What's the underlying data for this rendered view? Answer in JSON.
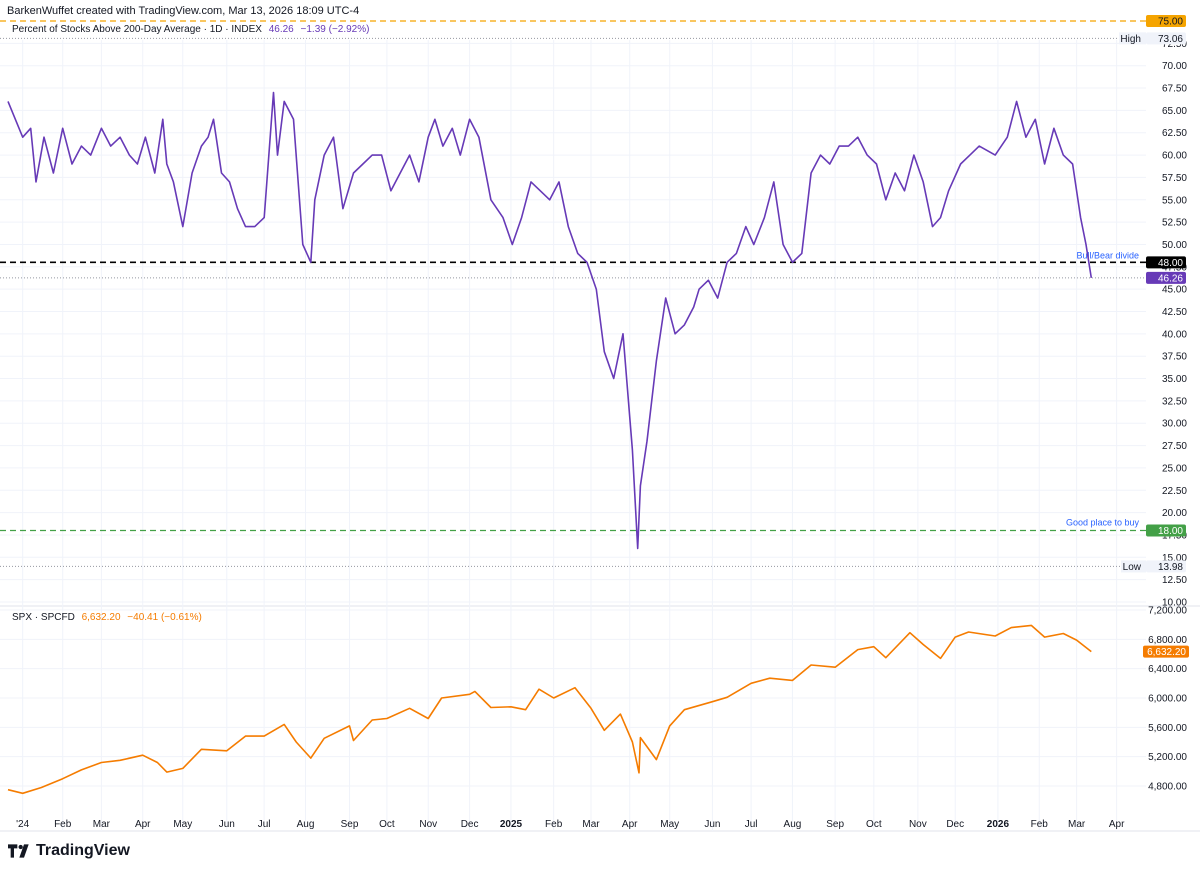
{
  "header": {
    "credit": "BarkenWuffet created with TradingView.com, Mar 13, 2026 18:09 UTC-4"
  },
  "legend_top": {
    "name": "Percent of Stocks Above 200-Day Average · 1D · INDEX",
    "value": "46.26",
    "change": "−1.39 (−2.92%)"
  },
  "legend_bottom": {
    "name": "SPX · SPCFD",
    "value": "6,632.20",
    "change": "−40.41 (−0.61%)"
  },
  "brand": {
    "name": "TradingView"
  },
  "colors": {
    "breadth": "#673ab7",
    "spx": "#f57c00",
    "level75": "#f5a400",
    "level18": "#43a047",
    "grid": "#f0f3fa",
    "label_blue": "#2962ff"
  },
  "chart_data": [
    {
      "type": "line",
      "title": "Percent of Stocks Above 200-Day Average · 1D · INDEX",
      "ylim": [
        10,
        75
      ],
      "y_ticks": [
        "10.00",
        "12.50",
        "15.00",
        "17.50",
        "20.00",
        "22.50",
        "25.00",
        "27.50",
        "30.00",
        "32.50",
        "35.00",
        "37.50",
        "40.00",
        "42.50",
        "45.00",
        "47.50",
        "50.00",
        "52.50",
        "55.00",
        "57.50",
        "60.00",
        "62.50",
        "65.00",
        "67.50",
        "70.00",
        "72.50"
      ],
      "x_ticks": [
        "'24",
        "Feb",
        "Mar",
        "Apr",
        "May",
        "Jun",
        "Jul",
        "Aug",
        "Sep",
        "Oct",
        "Nov",
        "Dec",
        "2025",
        "Feb",
        "Mar",
        "Apr",
        "May",
        "Jun",
        "Jul",
        "Aug",
        "Sep",
        "Oct",
        "Nov",
        "Dec",
        "2026",
        "Feb",
        "Mar",
        "Apr"
      ],
      "x_tick_dates": [
        "2024-01-02",
        "2024-02-01",
        "2024-03-01",
        "2024-04-01",
        "2024-05-01",
        "2024-06-03",
        "2024-07-01",
        "2024-08-01",
        "2024-09-03",
        "2024-10-01",
        "2024-11-01",
        "2024-12-02",
        "2025-01-02",
        "2025-02-03",
        "2025-03-03",
        "2025-04-01",
        "2025-05-01",
        "2025-06-02",
        "2025-07-01",
        "2025-08-01",
        "2025-09-02",
        "2025-10-01",
        "2025-11-03",
        "2025-12-01",
        "2026-01-02",
        "2026-02-02",
        "2026-03-02",
        "2026-04-01"
      ],
      "xlim": [
        "2023-12-22",
        "2026-04-23"
      ],
      "series": [
        {
          "name": "Percent of Stocks Above 200-Day Average",
          "x": [
            "2023-12-22",
            "2024-01-02",
            "2024-01-08",
            "2024-01-12",
            "2024-01-18",
            "2024-01-25",
            "2024-02-01",
            "2024-02-08",
            "2024-02-15",
            "2024-02-22",
            "2024-03-01",
            "2024-03-08",
            "2024-03-15",
            "2024-03-22",
            "2024-03-28",
            "2024-04-03",
            "2024-04-10",
            "2024-04-16",
            "2024-04-19",
            "2024-04-24",
            "2024-05-01",
            "2024-05-08",
            "2024-05-15",
            "2024-05-20",
            "2024-05-24",
            "2024-05-30",
            "2024-06-05",
            "2024-06-11",
            "2024-06-17",
            "2024-06-24",
            "2024-07-01",
            "2024-07-08",
            "2024-07-11",
            "2024-07-16",
            "2024-07-23",
            "2024-07-30",
            "2024-08-05",
            "2024-08-08",
            "2024-08-15",
            "2024-08-22",
            "2024-08-29",
            "2024-09-06",
            "2024-09-13",
            "2024-09-20",
            "2024-09-27",
            "2024-10-04",
            "2024-10-11",
            "2024-10-18",
            "2024-10-25",
            "2024-11-01",
            "2024-11-06",
            "2024-11-12",
            "2024-11-19",
            "2024-11-25",
            "2024-12-02",
            "2024-12-09",
            "2024-12-18",
            "2024-12-27",
            "2025-01-03",
            "2025-01-10",
            "2025-01-17",
            "2025-01-24",
            "2025-01-31",
            "2025-02-07",
            "2025-02-14",
            "2025-02-21",
            "2025-02-28",
            "2025-03-07",
            "2025-03-13",
            "2025-03-20",
            "2025-03-27",
            "2025-04-03",
            "2025-04-07",
            "2025-04-09",
            "2025-04-14",
            "2025-04-21",
            "2025-04-28",
            "2025-05-05",
            "2025-05-12",
            "2025-05-19",
            "2025-05-23",
            "2025-05-30",
            "2025-06-06",
            "2025-06-13",
            "2025-06-20",
            "2025-06-27",
            "2025-07-03",
            "2025-07-11",
            "2025-07-18",
            "2025-07-25",
            "2025-08-01",
            "2025-08-08",
            "2025-08-15",
            "2025-08-22",
            "2025-08-29",
            "2025-09-05",
            "2025-09-12",
            "2025-09-19",
            "2025-09-26",
            "2025-10-03",
            "2025-10-10",
            "2025-10-17",
            "2025-10-24",
            "2025-10-31",
            "2025-11-07",
            "2025-11-14",
            "2025-11-20",
            "2025-11-26",
            "2025-12-05",
            "2025-12-12",
            "2025-12-19",
            "2025-12-31",
            "2026-01-09",
            "2026-01-16",
            "2026-01-23",
            "2026-01-30",
            "2026-02-06",
            "2026-02-13",
            "2026-02-20",
            "2026-02-27",
            "2026-03-05",
            "2026-03-09",
            "2026-03-13"
          ],
          "y": [
            66,
            62,
            63,
            57,
            62,
            58,
            63,
            59,
            61,
            60,
            63,
            61,
            62,
            60,
            59,
            62,
            58,
            64,
            59,
            57,
            52,
            58,
            61,
            62,
            64,
            58,
            57,
            54,
            52,
            52,
            53,
            67,
            60,
            66,
            64,
            50,
            48,
            55,
            60,
            62,
            54,
            58,
            59,
            60,
            60,
            56,
            58,
            60,
            57,
            62,
            64,
            61,
            63,
            60,
            64,
            62,
            55,
            53,
            50,
            53,
            57,
            56,
            55,
            57,
            52,
            49,
            48,
            45,
            38,
            35,
            40,
            27,
            16,
            23,
            28,
            37,
            44,
            40,
            41,
            43,
            45,
            46,
            44,
            48,
            49,
            52,
            50,
            53,
            57,
            50,
            48,
            49,
            58,
            60,
            59,
            61,
            61,
            62,
            60,
            59,
            55,
            58,
            56,
            60,
            57,
            52,
            53,
            56,
            59,
            60,
            61,
            60,
            62,
            66,
            62,
            64,
            59,
            63,
            60,
            59,
            53,
            50,
            46.26
          ]
        }
      ],
      "reference_lines": [
        {
          "value": 75.0,
          "label": "75.00",
          "style": "dashed",
          "color": "#f5a400"
        },
        {
          "value": 48.0,
          "label": "48.00",
          "name": "Bull/Bear divide",
          "style": "dashed",
          "color": "#000000"
        },
        {
          "value": 18.0,
          "label": "18.00",
          "name": "Good place to buy",
          "style": "dashed",
          "color": "#43a047"
        }
      ],
      "high": {
        "label": "High",
        "value": "73.06"
      },
      "low": {
        "label": "Low",
        "value": "13.98"
      },
      "last": {
        "value": "46.26"
      }
    },
    {
      "type": "line",
      "title": "SPX · SPCFD",
      "ylim": [
        4600,
        7300
      ],
      "y_ticks": [
        "4,800.00",
        "5,200.00",
        "5,600.00",
        "6,000.00",
        "6,400.00",
        "6,800.00",
        "7,200.00"
      ],
      "xlim": [
        "2023-12-22",
        "2026-04-23"
      ],
      "series": [
        {
          "name": "SPX",
          "x": [
            "2023-12-22",
            "2024-01-02",
            "2024-01-16",
            "2024-02-01",
            "2024-02-15",
            "2024-03-01",
            "2024-03-15",
            "2024-04-01",
            "2024-04-12",
            "2024-04-19",
            "2024-05-01",
            "2024-05-15",
            "2024-06-03",
            "2024-06-17",
            "2024-07-01",
            "2024-07-16",
            "2024-07-25",
            "2024-08-05",
            "2024-08-15",
            "2024-09-03",
            "2024-09-06",
            "2024-09-20",
            "2024-10-01",
            "2024-10-18",
            "2024-11-01",
            "2024-11-11",
            "2024-12-02",
            "2024-12-06",
            "2024-12-18",
            "2025-01-02",
            "2025-01-13",
            "2025-01-23",
            "2025-02-03",
            "2025-02-19",
            "2025-03-03",
            "2025-03-13",
            "2025-03-25",
            "2025-04-03",
            "2025-04-08",
            "2025-04-09",
            "2025-04-21",
            "2025-05-01",
            "2025-05-12",
            "2025-06-02",
            "2025-06-13",
            "2025-07-01",
            "2025-07-15",
            "2025-08-01",
            "2025-08-15",
            "2025-09-02",
            "2025-09-19",
            "2025-10-01",
            "2025-10-10",
            "2025-10-28",
            "2025-11-07",
            "2025-11-20",
            "2025-12-01",
            "2025-12-11",
            "2025-12-31",
            "2026-01-12",
            "2026-01-27",
            "2026-02-06",
            "2026-02-20",
            "2026-03-02",
            "2026-03-13"
          ],
          "y": [
            4750,
            4700,
            4780,
            4900,
            5020,
            5120,
            5150,
            5220,
            5120,
            4990,
            5040,
            5300,
            5280,
            5480,
            5480,
            5640,
            5400,
            5180,
            5450,
            5620,
            5420,
            5700,
            5720,
            5860,
            5720,
            6000,
            6050,
            6090,
            5870,
            5880,
            5840,
            6120,
            6000,
            6140,
            5860,
            5560,
            5780,
            5400,
            4980,
            5460,
            5160,
            5620,
            5840,
            5950,
            6010,
            6200,
            6270,
            6240,
            6450,
            6420,
            6660,
            6700,
            6550,
            6890,
            6730,
            6540,
            6830,
            6900,
            6845,
            6960,
            6990,
            6830,
            6880,
            6790,
            6632.2
          ]
        }
      ],
      "last": {
        "value": "6,632.20"
      }
    }
  ]
}
